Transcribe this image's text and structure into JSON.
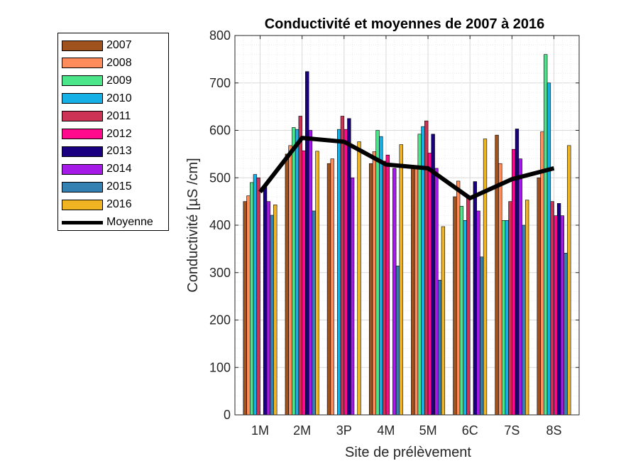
{
  "chart_data": {
    "type": "bar",
    "title": "Conductivité et moyennes de 2007 à 2016",
    "xlabel": "Site de prélèvement",
    "ylabel": "Conductivité [µS /cm]",
    "ylim": [
      0,
      800
    ],
    "yticks": [
      0,
      100,
      200,
      300,
      400,
      500,
      600,
      700,
      800
    ],
    "grid": true,
    "legend_position": "outside-left",
    "categories": [
      "1M",
      "2M",
      "3P",
      "4M",
      "5M",
      "6C",
      "7S",
      "8S"
    ],
    "series": [
      {
        "name": "2007",
        "color": "#a0521e",
        "values": [
          450,
          550,
          530,
          530,
          520,
          460,
          590,
          500
        ]
      },
      {
        "name": "2008",
        "color": "#ff8c5a",
        "values": [
          462,
          568,
          540,
          555,
          520,
          493,
          530,
          597
        ]
      },
      {
        "name": "2009",
        "color": "#4ce68a",
        "values": [
          490,
          606,
          null,
          600,
          592,
          440,
          410,
          760
        ]
      },
      {
        "name": "2010",
        "color": "#14b0e6",
        "values": [
          507,
          602,
          602,
          587,
          608,
          410,
          410,
          700
        ]
      },
      {
        "name": "2011",
        "color": "#cc3355",
        "values": [
          500,
          630,
          630,
          535,
          620,
          460,
          450,
          450
        ]
      },
      {
        "name": "2012",
        "color": "#ff0a8c",
        "values": [
          null,
          557,
          602,
          548,
          552,
          null,
          560,
          420
        ]
      },
      {
        "name": "2013",
        "color": "#1a0080",
        "values": [
          480,
          724,
          625,
          null,
          592,
          492,
          603,
          446
        ]
      },
      {
        "name": "2014",
        "color": "#a51ae6",
        "values": [
          450,
          600,
          500,
          520,
          520,
          430,
          540,
          420
        ]
      },
      {
        "name": "2015",
        "color": "#3380b3",
        "values": [
          421,
          430,
          null,
          314,
          284,
          333,
          400,
          341
        ]
      },
      {
        "name": "2016",
        "color": "#f0b423",
        "values": [
          443,
          556,
          576,
          570,
          397,
          582,
          453,
          568
        ]
      }
    ],
    "mean_series": {
      "name": "Moyenne",
      "color": "#000000",
      "values": [
        470,
        584,
        576,
        528,
        520,
        457,
        497,
        520
      ]
    }
  },
  "legend": {
    "items": [
      {
        "label": "2007",
        "color": "#a0521e"
      },
      {
        "label": "2008",
        "color": "#ff8c5a"
      },
      {
        "label": "2009",
        "color": "#4ce68a"
      },
      {
        "label": "2010",
        "color": "#14b0e6"
      },
      {
        "label": "2011",
        "color": "#cc3355"
      },
      {
        "label": "2012",
        "color": "#ff0a8c"
      },
      {
        "label": "2013",
        "color": "#1a0080"
      },
      {
        "label": "2014",
        "color": "#a51ae6"
      },
      {
        "label": "2015",
        "color": "#3380b3"
      },
      {
        "label": "2016",
        "color": "#f0b423"
      }
    ],
    "mean_label": "Moyenne"
  }
}
